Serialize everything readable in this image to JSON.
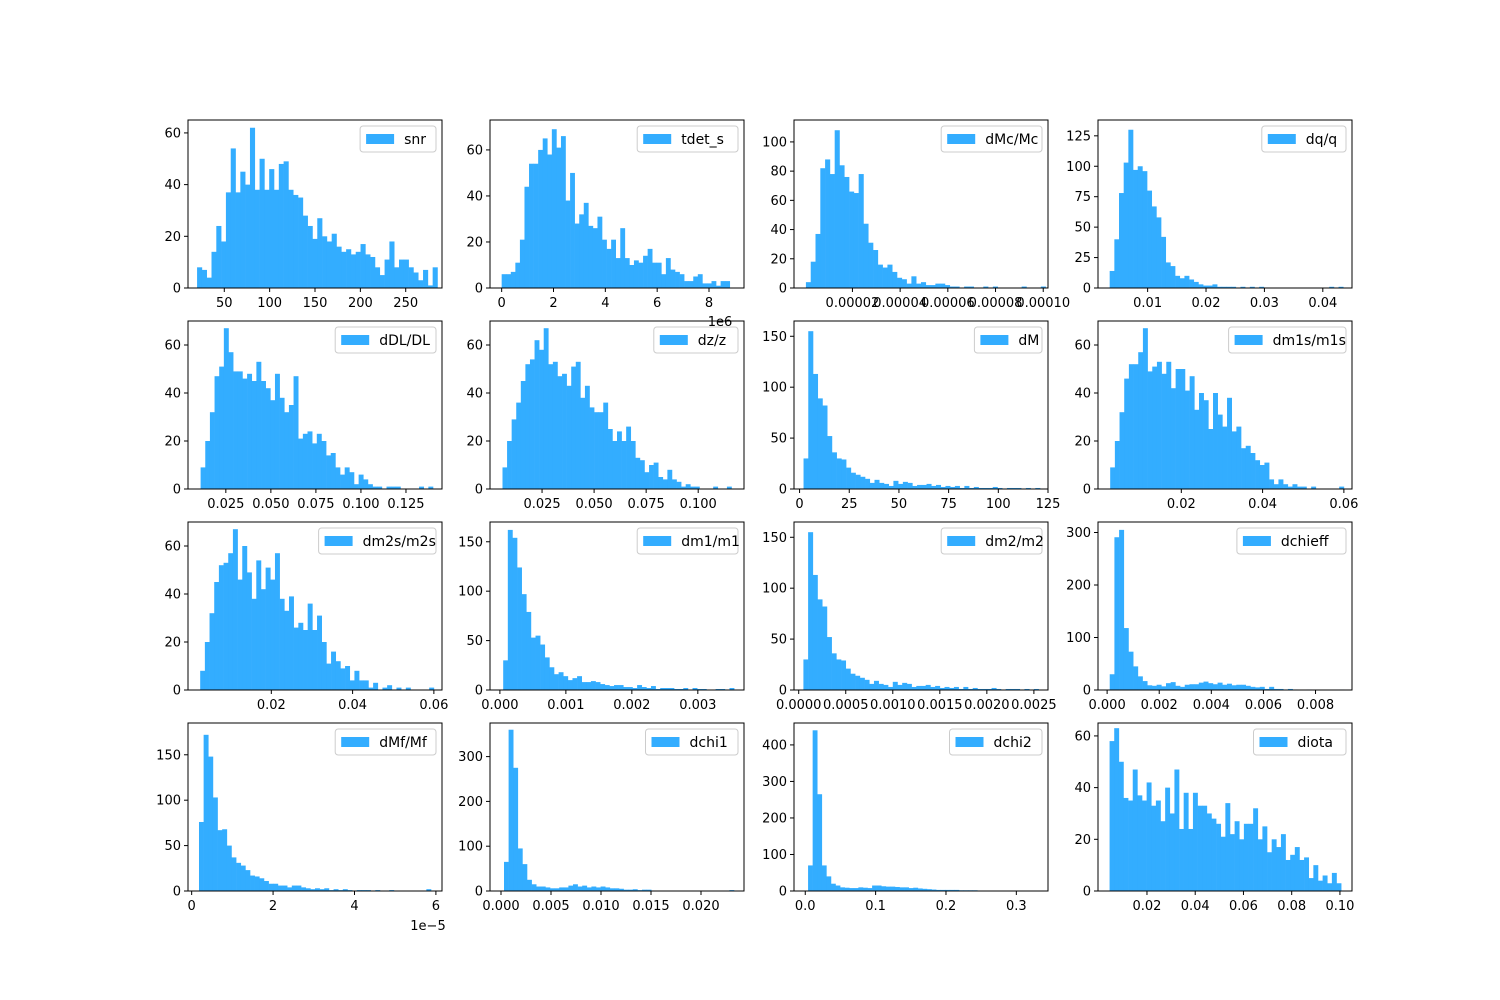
{
  "colors": {
    "bar": "#33adff",
    "axis": "#000000",
    "legend_border": "#cccccc",
    "background": "#ffffff"
  },
  "chart_data": [
    {
      "type": "bar",
      "legend": "snr",
      "xlim": [
        10,
        290
      ],
      "ylim": [
        0,
        65
      ],
      "xticks": [
        50,
        100,
        150,
        200,
        250
      ],
      "xtick_labels": [
        "50",
        "100",
        "150",
        "200",
        "250"
      ],
      "yticks": [
        0,
        20,
        40,
        60
      ],
      "ytick_labels": [
        "0",
        "20",
        "40",
        "60"
      ],
      "bins": [
        20,
        285
      ],
      "counts": [
        8,
        7,
        4,
        14,
        24,
        18,
        37,
        54,
        37,
        45,
        40,
        62,
        38,
        50,
        38,
        46,
        38,
        48,
        49,
        38,
        36,
        35,
        28,
        24,
        19,
        27,
        20,
        18,
        21,
        16,
        14,
        15,
        13,
        14,
        17,
        13,
        12,
        8,
        5,
        11,
        18,
        8,
        11,
        11,
        8,
        6,
        3,
        7,
        1,
        8
      ]
    },
    {
      "type": "bar",
      "legend": "tdet_s",
      "xlim": [
        -0.45,
        9.35
      ],
      "ylim": [
        0,
        73
      ],
      "offset": "1e6",
      "xticks": [
        0,
        2,
        4,
        6,
        8
      ],
      "xtick_labels": [
        "0",
        "2",
        "4",
        "6",
        "8"
      ],
      "yticks": [
        0,
        20,
        40,
        60
      ],
      "ytick_labels": [
        "0",
        "20",
        "40",
        "60"
      ],
      "bins": [
        0,
        8.8
      ],
      "counts": [
        6,
        6,
        7,
        11,
        21,
        44,
        54,
        54,
        60,
        65,
        58,
        69,
        61,
        66,
        38,
        50,
        28,
        32,
        37,
        27,
        26,
        31,
        21,
        17,
        21,
        13,
        26,
        13,
        10,
        12,
        11,
        14,
        17,
        11,
        11,
        6,
        13,
        8,
        7,
        6,
        3,
        3,
        5,
        6,
        2,
        2,
        3,
        1,
        3,
        3
      ]
    },
    {
      "type": "bar",
      "legend": "dMc/Mc",
      "xlim": [
        -4.5e-06,
        0.000102
      ],
      "ylim": [
        0,
        115
      ],
      "xticks": [
        2e-05,
        4e-05,
        6e-05,
        8e-05,
        0.0001
      ],
      "xtick_labels": [
        "0.00002",
        "0.00004",
        "0.00006",
        "0.00008",
        "0.00010"
      ],
      "yticks": [
        0,
        20,
        40,
        60,
        80,
        100
      ],
      "ytick_labels": [
        "0",
        "20",
        "40",
        "60",
        "80",
        "100"
      ],
      "bins": [
        5e-07,
        0.000101
      ],
      "counts": [
        4,
        18,
        37,
        82,
        88,
        78,
        108,
        84,
        76,
        66,
        65,
        78,
        44,
        31,
        26,
        16,
        14,
        16,
        11,
        7,
        6,
        3,
        8,
        3,
        4,
        2,
        2,
        3,
        3,
        2,
        1,
        1,
        0,
        1,
        1,
        0,
        0,
        1,
        0,
        1,
        0,
        0,
        0,
        0,
        0,
        1,
        0,
        0,
        0,
        1
      ]
    },
    {
      "type": "bar",
      "legend": "dq/q",
      "xlim": [
        0.0015,
        0.045
      ],
      "ylim": [
        0,
        138
      ],
      "xticks": [
        0.01,
        0.02,
        0.03,
        0.04
      ],
      "xtick_labels": [
        "0.01",
        "0.02",
        "0.03",
        "0.04"
      ],
      "yticks": [
        0,
        25,
        50,
        75,
        100,
        125
      ],
      "ytick_labels": [
        "0",
        "25",
        "50",
        "75",
        "100",
        "125"
      ],
      "bins": [
        0.0035,
        0.0435
      ],
      "counts": [
        14,
        40,
        78,
        103,
        130,
        97,
        100,
        96,
        80,
        67,
        58,
        42,
        21,
        18,
        10,
        8,
        10,
        7,
        5,
        3,
        2,
        2,
        3,
        1,
        1,
        1,
        1,
        0,
        1,
        0,
        1,
        0,
        1,
        0,
        0,
        0,
        0,
        0,
        0,
        0,
        0,
        0,
        0,
        0,
        0,
        0,
        0,
        1,
        0,
        1
      ]
    },
    {
      "type": "bar",
      "legend": "dDL/DL",
      "xlim": [
        0.004,
        0.145
      ],
      "ylim": [
        0,
        70
      ],
      "xticks": [
        0.025,
        0.05,
        0.075,
        0.1,
        0.125
      ],
      "xtick_labels": [
        "0.025",
        "0.050",
        "0.075",
        "0.100",
        "0.125"
      ],
      "yticks": [
        0,
        20,
        40,
        60
      ],
      "ytick_labels": [
        "0",
        "20",
        "40",
        "60"
      ],
      "bins": [
        0.011,
        0.14
      ],
      "counts": [
        9,
        20,
        32,
        47,
        51,
        67,
        57,
        49,
        49,
        46,
        48,
        45,
        53,
        45,
        42,
        37,
        48,
        38,
        32,
        35,
        47,
        21,
        23,
        24,
        19,
        23,
        20,
        14,
        15,
        9,
        6,
        9,
        7,
        2,
        6,
        4,
        2,
        1,
        1,
        0,
        1,
        1,
        1,
        0,
        0,
        0,
        0,
        1,
        0,
        1
      ]
    },
    {
      "type": "bar",
      "legend": "dz/z",
      "xlim": [
        0.0,
        0.122
      ],
      "ylim": [
        0,
        70
      ],
      "xticks": [
        0.025,
        0.05,
        0.075,
        0.1
      ],
      "xtick_labels": [
        "0.025",
        "0.050",
        "0.075",
        "0.100"
      ],
      "yticks": [
        0,
        20,
        40,
        60
      ],
      "ytick_labels": [
        "0",
        "20",
        "40",
        "60"
      ],
      "bins": [
        0.006,
        0.116
      ],
      "counts": [
        9,
        20,
        29,
        36,
        45,
        52,
        54,
        62,
        58,
        67,
        52,
        53,
        47,
        48,
        43,
        51,
        53,
        38,
        43,
        34,
        32,
        32,
        36,
        25,
        20,
        24,
        20,
        26,
        20,
        13,
        12,
        7,
        10,
        11,
        5,
        4,
        8,
        4,
        3,
        1,
        2,
        1,
        1,
        0,
        0,
        0,
        1,
        0,
        0,
        1
      ]
    },
    {
      "type": "bar",
      "legend": "dM",
      "xlim": [
        -2.8,
        125
      ],
      "ylim": [
        0,
        165
      ],
      "xticks": [
        0,
        25,
        50,
        75,
        100,
        125
      ],
      "xtick_labels": [
        "0",
        "25",
        "50",
        "75",
        "100",
        "125"
      ],
      "yticks": [
        0,
        50,
        100,
        150
      ],
      "ytick_labels": [
        "0",
        "50",
        "100",
        "150"
      ],
      "bins": [
        2,
        121
      ],
      "counts": [
        30,
        155,
        113,
        89,
        82,
        52,
        36,
        30,
        29,
        21,
        16,
        14,
        12,
        10,
        6,
        9,
        6,
        5,
        3,
        8,
        5,
        7,
        6,
        3,
        4,
        4,
        5,
        3,
        4,
        2,
        3,
        2,
        3,
        1,
        3,
        1,
        2,
        1,
        1,
        1,
        2,
        1,
        0,
        1,
        1,
        1,
        0,
        1,
        0,
        1
      ]
    },
    {
      "type": "bar",
      "legend": "dm1s/m1s",
      "xlim": [
        -0.0005,
        0.062
      ],
      "ylim": [
        0,
        70
      ],
      "xticks": [
        0.02,
        0.04,
        0.06
      ],
      "xtick_labels": [
        "0.02",
        "0.04",
        "0.06"
      ],
      "yticks": [
        0,
        20,
        40,
        60
      ],
      "ytick_labels": [
        "0",
        "20",
        "40",
        "60"
      ],
      "bins": [
        0.0025,
        0.06
      ],
      "counts": [
        9,
        20,
        32,
        46,
        52,
        52,
        57,
        67,
        49,
        51,
        53,
        48,
        53,
        42,
        50,
        50,
        41,
        47,
        33,
        40,
        37,
        25,
        40,
        31,
        26,
        38,
        24,
        26,
        17,
        18,
        15,
        12,
        10,
        11,
        4,
        2,
        4,
        2,
        1,
        2,
        1,
        1,
        0,
        1,
        0,
        0,
        0,
        0,
        0,
        1
      ]
    },
    {
      "type": "bar",
      "legend": "dm2s/m2s",
      "xlim": [
        -0.0005,
        0.062
      ],
      "ylim": [
        0,
        70
      ],
      "xticks": [
        0.02,
        0.04,
        0.06
      ],
      "xtick_labels": [
        "0.02",
        "0.04",
        "0.06"
      ],
      "yticks": [
        0,
        20,
        40,
        60
      ],
      "ytick_labels": [
        "0",
        "20",
        "40",
        "60"
      ],
      "bins": [
        0.0025,
        0.06
      ],
      "counts": [
        8,
        20,
        32,
        45,
        52,
        53,
        57,
        67,
        46,
        60,
        49,
        38,
        54,
        42,
        51,
        46,
        57,
        38,
        33,
        39,
        26,
        28,
        25,
        36,
        25,
        31,
        20,
        11,
        16,
        12,
        9,
        10,
        4,
        8,
        4,
        4,
        1,
        3,
        0,
        1,
        2,
        0,
        1,
        0,
        1,
        0,
        0,
        0,
        0,
        1
      ]
    },
    {
      "type": "bar",
      "legend": "dm1/m1",
      "xlim": [
        -0.00015,
        0.0037
      ],
      "ylim": [
        0,
        170
      ],
      "xticks": [
        0,
        0.001,
        0.002,
        0.003
      ],
      "xtick_labels": [
        "0.000",
        "0.001",
        "0.002",
        "0.003"
      ],
      "yticks": [
        0,
        50,
        100,
        150
      ],
      "ytick_labels": [
        "0",
        "50",
        "100",
        "150"
      ],
      "bins": [
        5e-05,
        0.00355
      ],
      "counts": [
        30,
        162,
        154,
        124,
        97,
        79,
        53,
        55,
        46,
        33,
        23,
        16,
        18,
        14,
        10,
        12,
        14,
        8,
        8,
        9,
        8,
        6,
        5,
        4,
        5,
        5,
        3,
        3,
        2,
        5,
        3,
        2,
        4,
        1,
        2,
        2,
        2,
        1,
        1,
        2,
        0,
        2,
        1,
        1,
        0,
        0,
        1,
        1,
        0,
        2
      ]
    },
    {
      "type": "bar",
      "legend": "dm2/m2",
      "xlim": [
        -5e-05,
        0.00265
      ],
      "ylim": [
        0,
        165
      ],
      "xticks": [
        0,
        0.0005,
        0.001,
        0.0015,
        0.002,
        0.0025
      ],
      "xtick_labels": [
        "0.0000",
        "0.0005",
        "0.0010",
        "0.0015",
        "0.0020",
        "0.0025"
      ],
      "yticks": [
        0,
        50,
        100,
        150
      ],
      "ytick_labels": [
        "0",
        "50",
        "100",
        "150"
      ],
      "bins": [
        5e-05,
        0.00255
      ],
      "counts": [
        30,
        155,
        113,
        89,
        82,
        52,
        36,
        30,
        29,
        21,
        16,
        14,
        12,
        10,
        6,
        9,
        6,
        5,
        3,
        8,
        5,
        7,
        6,
        3,
        4,
        4,
        5,
        3,
        4,
        2,
        3,
        2,
        3,
        1,
        3,
        1,
        2,
        1,
        1,
        1,
        2,
        1,
        0,
        1,
        1,
        1,
        0,
        1,
        0,
        1
      ]
    },
    {
      "type": "bar",
      "legend": "dchieff",
      "xlim": [
        -0.00035,
        0.0094
      ],
      "ylim": [
        0,
        320
      ],
      "xticks": [
        0,
        0.002,
        0.004,
        0.006,
        0.008
      ],
      "xtick_labels": [
        "0.000",
        "0.002",
        "0.004",
        "0.006",
        "0.008"
      ],
      "yticks": [
        0,
        100,
        200,
        300
      ],
      "ytick_labels": [
        "0",
        "100",
        "200",
        "300"
      ],
      "bins": [
        0.0001,
        0.0091
      ],
      "counts": [
        30,
        291,
        305,
        118,
        73,
        45,
        26,
        17,
        9,
        8,
        10,
        7,
        13,
        15,
        8,
        6,
        10,
        11,
        11,
        14,
        16,
        13,
        11,
        14,
        10,
        12,
        9,
        10,
        10,
        8,
        6,
        5,
        6,
        2,
        6,
        2,
        2,
        1,
        2,
        1,
        0,
        0,
        1,
        0,
        0,
        0,
        0,
        0,
        0,
        1
      ]
    },
    {
      "type": "bar",
      "legend": "dMf/Mf",
      "xlim": [
        -9e-07,
        6.15e-05
      ],
      "ylim": [
        0,
        185
      ],
      "offset": "1e−5",
      "xticks": [
        0,
        2e-05,
        4e-05,
        6e-05
      ],
      "xtick_labels": [
        "0",
        "2",
        "4",
        "6"
      ],
      "yticks": [
        0,
        50,
        100,
        150
      ],
      "ytick_labels": [
        "0",
        "50",
        "100",
        "150"
      ],
      "bins": [
        1.8e-06,
        5.88e-05
      ],
      "counts": [
        76,
        172,
        148,
        103,
        67,
        68,
        50,
        37,
        31,
        28,
        23,
        17,
        16,
        14,
        11,
        8,
        8,
        6,
        6,
        4,
        6,
        6,
        4,
        3,
        2,
        3,
        2,
        3,
        1,
        2,
        1,
        2,
        1,
        0,
        1,
        1,
        1,
        0,
        1,
        0,
        0,
        1,
        0,
        0,
        0,
        0,
        0,
        0,
        0,
        2
      ]
    },
    {
      "type": "bar",
      "legend": "dchi1",
      "xlim": [
        -0.0011,
        0.0243
      ],
      "ylim": [
        0,
        375
      ],
      "xticks": [
        0,
        0.005,
        0.01,
        0.015,
        0.02
      ],
      "xtick_labels": [
        "0.000",
        "0.005",
        "0.010",
        "0.015",
        "0.020"
      ],
      "yticks": [
        0,
        100,
        200,
        300
      ],
      "ytick_labels": [
        "0",
        "100",
        "200",
        "300"
      ],
      "bins": [
        0.0003,
        0.0233
      ],
      "counts": [
        65,
        360,
        275,
        95,
        60,
        25,
        15,
        10,
        10,
        8,
        6,
        6,
        8,
        8,
        12,
        15,
        10,
        12,
        8,
        10,
        8,
        10,
        8,
        6,
        6,
        5,
        3,
        3,
        4,
        2,
        3,
        3,
        1,
        1,
        1,
        1,
        1,
        0,
        0,
        1,
        0,
        0,
        0,
        0,
        0,
        0,
        0,
        0,
        0,
        2
      ]
    },
    {
      "type": "bar",
      "legend": "dchi2",
      "xlim": [
        -0.016,
        0.345
      ],
      "ylim": [
        0,
        460
      ],
      "xticks": [
        0,
        0.1,
        0.2,
        0.3
      ],
      "xtick_labels": [
        "0.0",
        "0.1",
        "0.2",
        "0.3"
      ],
      "yticks": [
        0,
        100,
        200,
        300,
        400
      ],
      "ytick_labels": [
        "0",
        "100",
        "200",
        "300",
        "400"
      ],
      "bins": [
        0.004,
        0.329
      ],
      "counts": [
        70,
        440,
        265,
        70,
        40,
        20,
        15,
        10,
        9,
        8,
        8,
        10,
        9,
        8,
        15,
        15,
        13,
        12,
        12,
        11,
        10,
        10,
        8,
        9,
        7,
        6,
        5,
        4,
        3,
        3,
        3,
        3,
        3,
        2,
        2,
        2,
        2,
        1,
        1,
        1,
        0,
        0,
        0,
        0,
        0,
        0,
        0,
        0,
        0,
        1
      ]
    },
    {
      "type": "bar",
      "legend": "diota",
      "xlim": [
        -0.0003,
        0.105
      ],
      "ylim": [
        0,
        65
      ],
      "xticks": [
        0.02,
        0.04,
        0.06,
        0.08,
        0.1
      ],
      "xtick_labels": [
        "0.02",
        "0.04",
        "0.06",
        "0.08",
        "0.10"
      ],
      "yticks": [
        0,
        20,
        40,
        60
      ],
      "ytick_labels": [
        "0",
        "20",
        "40",
        "60"
      ],
      "bins": [
        0.0045,
        0.1005
      ],
      "counts": [
        58,
        63,
        50,
        36,
        35,
        47,
        37,
        35,
        42,
        33,
        35,
        27,
        40,
        30,
        47,
        24,
        38,
        24,
        38,
        33,
        33,
        30,
        28,
        26,
        21,
        34,
        22,
        27,
        20,
        26,
        26,
        32,
        20,
        25,
        15,
        20,
        17,
        22,
        12,
        14,
        17,
        12,
        13,
        5,
        10,
        4,
        6,
        3,
        7,
        3
      ]
    }
  ]
}
